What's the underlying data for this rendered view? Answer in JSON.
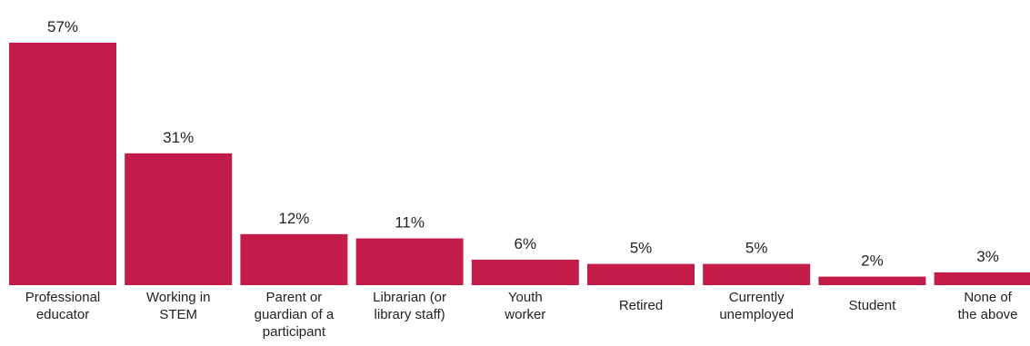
{
  "chart_data": {
    "type": "bar",
    "categories": [
      [
        "Professional",
        "educator"
      ],
      [
        "Working in",
        "STEM"
      ],
      [
        "Parent or",
        "guardian of a",
        "participant"
      ],
      [
        "Librarian (or",
        "library staff)"
      ],
      [
        "Youth",
        "worker"
      ],
      [
        "Retired"
      ],
      [
        "Currently",
        "unemployed"
      ],
      [
        "Student"
      ],
      [
        "None of",
        "the above"
      ]
    ],
    "values": [
      57,
      31,
      12,
      11,
      6,
      5,
      5,
      2,
      3
    ],
    "value_labels": [
      "57%",
      "31%",
      "12%",
      "11%",
      "6%",
      "5%",
      "5%",
      "2%",
      "3%"
    ],
    "unit": "%",
    "ylim": [
      0,
      57
    ],
    "bar_color": "#c41c48",
    "grid": false,
    "legend": "none"
  }
}
